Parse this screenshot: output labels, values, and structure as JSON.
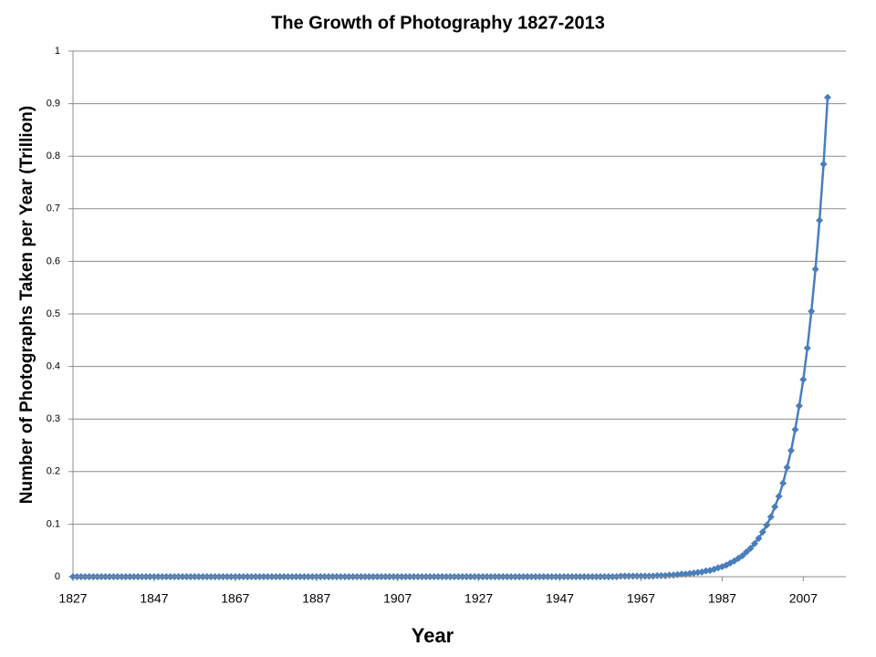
{
  "chart_data": {
    "type": "line",
    "title": "The Growth of Photography 1827-2013",
    "x_label": "Year",
    "y_label": "Number of Photographs Taken per Year (Trillion)",
    "color": "#4a7ebb",
    "marker": "diamond",
    "grid": true,
    "x": [
      1827,
      1828,
      1829,
      1830,
      1831,
      1832,
      1833,
      1834,
      1835,
      1836,
      1837,
      1838,
      1839,
      1840,
      1841,
      1842,
      1843,
      1844,
      1845,
      1846,
      1847,
      1848,
      1849,
      1850,
      1851,
      1852,
      1853,
      1854,
      1855,
      1856,
      1857,
      1858,
      1859,
      1860,
      1861,
      1862,
      1863,
      1864,
      1865,
      1866,
      1867,
      1868,
      1869,
      1870,
      1871,
      1872,
      1873,
      1874,
      1875,
      1876,
      1877,
      1878,
      1879,
      1880,
      1881,
      1882,
      1883,
      1884,
      1885,
      1886,
      1887,
      1888,
      1889,
      1890,
      1891,
      1892,
      1893,
      1894,
      1895,
      1896,
      1897,
      1898,
      1899,
      1900,
      1901,
      1902,
      1903,
      1904,
      1905,
      1906,
      1907,
      1908,
      1909,
      1910,
      1911,
      1912,
      1913,
      1914,
      1915,
      1916,
      1917,
      1918,
      1919,
      1920,
      1921,
      1922,
      1923,
      1924,
      1925,
      1926,
      1927,
      1928,
      1929,
      1930,
      1931,
      1932,
      1933,
      1934,
      1935,
      1936,
      1937,
      1938,
      1939,
      1940,
      1941,
      1942,
      1943,
      1944,
      1945,
      1946,
      1947,
      1948,
      1949,
      1950,
      1951,
      1952,
      1953,
      1954,
      1955,
      1956,
      1957,
      1958,
      1959,
      1960,
      1961,
      1962,
      1963,
      1964,
      1965,
      1966,
      1967,
      1968,
      1969,
      1970,
      1971,
      1972,
      1973,
      1974,
      1975,
      1976,
      1977,
      1978,
      1979,
      1980,
      1981,
      1982,
      1983,
      1984,
      1985,
      1986,
      1987,
      1988,
      1989,
      1990,
      1991,
      1992,
      1993,
      1994,
      1995,
      1996,
      1997,
      1998,
      1999,
      2000,
      2001,
      2002,
      2003,
      2004,
      2005,
      2006,
      2007,
      2008,
      2009,
      2010,
      2011,
      2012,
      2013
    ],
    "values": [
      0,
      0,
      0,
      0,
      0,
      0,
      0,
      0,
      0,
      0,
      0,
      0,
      0,
      0,
      0,
      0,
      0,
      0,
      0,
      0,
      0,
      0,
      0,
      0,
      0,
      0,
      0,
      0,
      0,
      0,
      0,
      0,
      0,
      0,
      0,
      0,
      0,
      0,
      0,
      0,
      0,
      0,
      0,
      0,
      0,
      0,
      0,
      0,
      0,
      0,
      0,
      0,
      0,
      0,
      0,
      0,
      0,
      0,
      0,
      0,
      0,
      0,
      0,
      0,
      0,
      0,
      0,
      0,
      0,
      0,
      0,
      0,
      0,
      0,
      0,
      0,
      0,
      0,
      0,
      0,
      0,
      0,
      0,
      0,
      0,
      0,
      0,
      0,
      0,
      0,
      0,
      0,
      0,
      0,
      0,
      0,
      0,
      0,
      0,
      0,
      0,
      0,
      0,
      0,
      0,
      0,
      0,
      0,
      0,
      0,
      0,
      0,
      0,
      0,
      0,
      0,
      0,
      0,
      0,
      0,
      0,
      0,
      0,
      0,
      0,
      0,
      0,
      0,
      0,
      0,
      0,
      0,
      0,
      0,
      0,
      0.001,
      0.001,
      0.001,
      0.001,
      0.001,
      0.001,
      0.001,
      0.001,
      0.001,
      0.002,
      0.002,
      0.002,
      0.003,
      0.003,
      0.004,
      0.005,
      0.005,
      0.006,
      0.007,
      0.008,
      0.009,
      0.011,
      0.012,
      0.014,
      0.017,
      0.019,
      0.022,
      0.026,
      0.03,
      0.035,
      0.04,
      0.047,
      0.054,
      0.063,
      0.073,
      0.085,
      0.098,
      0.114,
      0.133,
      0.153,
      0.178,
      0.208,
      0.24,
      0.28,
      0.325,
      0.375,
      0.435,
      0.505,
      0.585,
      0.678,
      0.785,
      0.912
    ],
    "xlim": [
      1827,
      2017.5
    ],
    "xticks": [
      1827,
      1847,
      1867,
      1887,
      1907,
      1927,
      1947,
      1967,
      1987,
      2007
    ],
    "ylim": [
      0,
      1
    ],
    "yticks": [
      0,
      0.1,
      0.2,
      0.3,
      0.4,
      0.5,
      0.6,
      0.7,
      0.8,
      0.9,
      1
    ]
  }
}
